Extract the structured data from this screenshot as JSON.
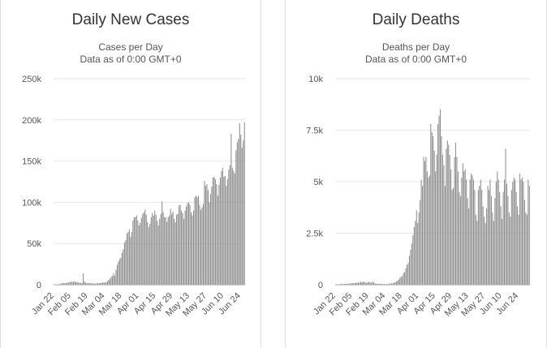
{
  "chart_data": [
    {
      "id": "cases",
      "type": "bar",
      "title": "Daily New Cases",
      "subtitle": "Cases per Day",
      "subtitle2": "Data as of 0:00 GMT+0",
      "ylim": [
        0,
        250000
      ],
      "yticks": [
        0,
        50000,
        100000,
        150000,
        200000,
        250000
      ],
      "ytick_labels": [
        "0",
        "50k",
        "100k",
        "150k",
        "200k",
        "250k"
      ],
      "xtick_labels": [
        "Jan 22",
        "Feb 05",
        "Feb 19",
        "Mar 04",
        "Mar 18",
        "Apr 01",
        "Apr 15",
        "Apr 29",
        "May 13",
        "May 27",
        "Jun 10",
        "Jun 24"
      ],
      "xtick_step": 14,
      "bar_color": "#8c8c8c",
      "values": [
        540,
        100,
        260,
        450,
        680,
        800,
        1700,
        2000,
        2100,
        1700,
        2000,
        2600,
        2700,
        3200,
        3700,
        3200,
        3900,
        3700,
        3200,
        3200,
        2600,
        2500,
        2100,
        2000,
        14000,
        4000,
        2500,
        2100,
        1900,
        2000,
        1900,
        1800,
        1200,
        2000,
        700,
        1800,
        1900,
        2100,
        2100,
        2400,
        2300,
        3000,
        2400,
        3000,
        4500,
        5700,
        7500,
        9500,
        10500,
        14000,
        11000,
        18000,
        24000,
        28000,
        31000,
        33000,
        39000,
        43000,
        51000,
        54000,
        62000,
        64000,
        67000,
        58000,
        64000,
        78000,
        82000,
        82000,
        84000,
        78000,
        72000,
        75000,
        81000,
        86000,
        88000,
        91000,
        85000,
        76000,
        70000,
        74000,
        82000,
        87000,
        84000,
        90000,
        85000,
        78000,
        72000,
        80000,
        86000,
        101000,
        88000,
        82000,
        82000,
        76000,
        82000,
        84000,
        92000,
        86000,
        89000,
        80000,
        76000,
        85000,
        86000,
        96000,
        97000,
        90000,
        87000,
        80000,
        90000,
        95000,
        99000,
        100000,
        97000,
        88000,
        84000,
        90000,
        106000,
        108000,
        106000,
        108000,
        97000,
        91000,
        94000,
        98000,
        126000,
        120000,
        122000,
        115000,
        100000,
        110000,
        119000,
        130000,
        131000,
        128000,
        122000,
        108000,
        121000,
        130000,
        138000,
        142000,
        131000,
        132000,
        120000,
        128000,
        140000,
        145000,
        183000,
        142000,
        138000,
        135000,
        163000,
        173000,
        177000,
        196000,
        182000,
        166000,
        175000,
        197000
      ]
    },
    {
      "id": "deaths",
      "type": "bar",
      "title": "Daily Deaths",
      "subtitle": "Deaths per Day",
      "subtitle2": "Data as of 0:00 GMT+0",
      "ylim": [
        0,
        10000
      ],
      "yticks": [
        0,
        2500,
        5000,
        7500,
        10000
      ],
      "ytick_labels": [
        "0",
        "2.5k",
        "5k",
        "7.5k",
        "10k"
      ],
      "xtick_labels": [
        "Jan 22",
        "Feb 05",
        "Feb 19",
        "Mar 04",
        "Mar 18",
        "Apr 01",
        "Apr 15",
        "Apr 29",
        "May 13",
        "May 27",
        "Jun 10",
        "Jun 24"
      ],
      "xtick_step": 14,
      "bar_color": "#8c8c8c",
      "values": [
        17,
        8,
        16,
        14,
        26,
        49,
        2,
        38,
        43,
        46,
        45,
        57,
        64,
        66,
        73,
        73,
        86,
        89,
        97,
        108,
        97,
        146,
        121,
        143,
        142,
        105,
        98,
        136,
        142,
        106,
        98,
        139,
        112,
        70,
        52,
        29,
        44,
        47,
        35,
        42,
        31,
        38,
        31,
        30,
        41,
        57,
        51,
        69,
        71,
        100,
        110,
        160,
        200,
        250,
        340,
        390,
        420,
        560,
        620,
        800,
        970,
        1060,
        1400,
        1700,
        2000,
        2400,
        2800,
        3100,
        3600,
        3000,
        3500,
        4100,
        5100,
        4800,
        6200,
        6000,
        6200,
        5500,
        5200,
        5300,
        7800,
        7400,
        7200,
        6500,
        5500,
        6300,
        7800,
        8200,
        8500,
        7200,
        6300,
        5800,
        4800,
        6600,
        7000,
        6800,
        6300,
        5600,
        4600,
        4700,
        6200,
        6900,
        6200,
        5500,
        4500,
        4300,
        5200,
        5900,
        5500,
        5600,
        5100,
        4200,
        3700,
        5100,
        5400,
        5300,
        5100,
        4600,
        3400,
        3100,
        4600,
        4800,
        5100,
        4600,
        3800,
        3300,
        3000,
        3700,
        4800,
        4600,
        5100,
        4300,
        3500,
        3100,
        4200,
        5000,
        5500,
        5100,
        4500,
        3800,
        3200,
        4500,
        5100,
        6600,
        4900,
        4300,
        3500,
        3300,
        4600,
        5000,
        5200,
        5100,
        4500,
        3800,
        3400,
        5400,
        5100,
        5200,
        5000,
        4100,
        3500,
        3400,
        5100,
        4800
      ]
    }
  ]
}
